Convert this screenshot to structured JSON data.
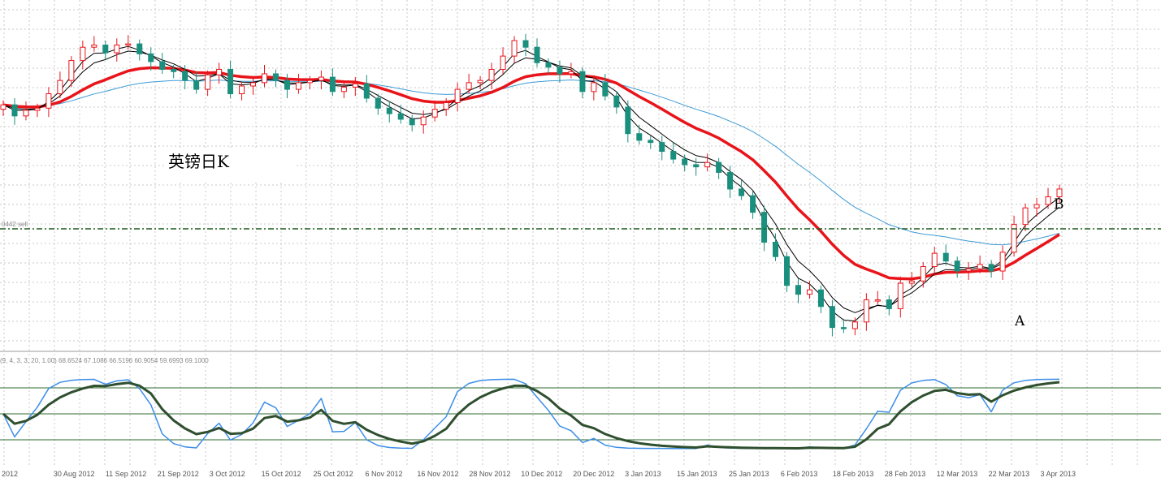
{
  "chart_data": [
    {
      "type": "candlestick",
      "title": "英镑日K",
      "price_tag": "0442 sell",
      "annotations": [
        {
          "text": "A",
          "at": "4 Apr 2013"
        },
        {
          "text": "B",
          "at": "16 Apr 2013"
        }
      ],
      "x_ticks": [
        "2012",
        "30 Aug 2012",
        "11 Sep 2012",
        "21 Sep 2012",
        "3 Oct 2012",
        "15 Oct 2012",
        "25 Oct 2012",
        "6 Nov 2012",
        "16 Nov 2012",
        "28 Nov 2012",
        "10 Dec 2012",
        "20 Dec 2012",
        "3 Jan 2013",
        "15 Jan 2013",
        "25 Jan 2013",
        "6 Feb 2013",
        "18 Feb 2013",
        "28 Feb 2013",
        "12 Mar 2013",
        "22 Mar 2013",
        "3 Apr 2013"
      ],
      "closes": [
        8,
        -2,
        3,
        5,
        18,
        30,
        48,
        60,
        62,
        55,
        62,
        63,
        54,
        47,
        40,
        38,
        30,
        22,
        35,
        40,
        18,
        25,
        28,
        36,
        30,
        22,
        28,
        30,
        33,
        20,
        24,
        27,
        14,
        5,
        0,
        -5,
        -10,
        -3,
        4,
        10,
        22,
        28,
        30,
        40,
        52,
        66,
        60,
        46,
        42,
        36,
        38,
        20,
        28,
        16,
        6,
        -18,
        -24,
        -26,
        -34,
        -41,
        -46,
        -48,
        -44,
        -53,
        -68,
        -74,
        -89,
        -116,
        -129,
        -155,
        -163,
        -159,
        -174,
        -193,
        -194,
        -188,
        -168,
        -168,
        -176,
        -153,
        -151,
        -138,
        -126,
        -133,
        -142,
        -140,
        -136,
        -142,
        -125,
        -100,
        -85,
        -82,
        -75,
        -68
      ],
      "series": [
        {
          "name": "MA fast",
          "color": "#000000"
        },
        {
          "name": "MA medium",
          "color": "#000000"
        },
        {
          "name": "MA slow",
          "color": "#e8141a"
        },
        {
          "name": "MA long",
          "color": "#3d9bd6"
        }
      ],
      "colors": {
        "up": "#e8141a",
        "down": "#1a8f7e",
        "grid": "#c8c8c8",
        "level": "#1c5c1c"
      }
    },
    {
      "type": "line",
      "indicator_label": "(9, 4, 3, 3, 20, 1.00) 68.6524 67.1086 66.5196 60.9054 59.6993 69.1000",
      "levels": [
        80,
        50,
        20
      ],
      "series": [
        {
          "name": "%K",
          "color": "#3d8ee8"
        },
        {
          "name": "%D",
          "color": "#2f4f2f"
        }
      ]
    }
  ]
}
